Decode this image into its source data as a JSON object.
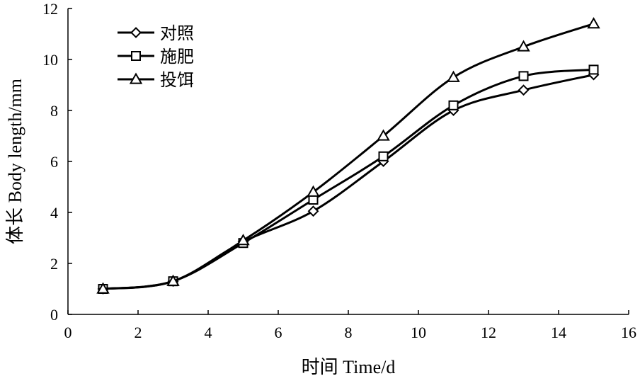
{
  "chart_data": {
    "type": "line",
    "xlabel": "时间 Time/d",
    "ylabel": "体长 Body length/mm",
    "xlim": [
      0,
      16
    ],
    "ylim": [
      0,
      12
    ],
    "xticks": [
      0,
      2,
      4,
      6,
      8,
      10,
      12,
      14,
      16
    ],
    "yticks": [
      0,
      2,
      4,
      6,
      8,
      10,
      12
    ],
    "grid": false,
    "legend_position": "top-left",
    "x": [
      1,
      3,
      5,
      7,
      9,
      11,
      13,
      15
    ],
    "series": [
      {
        "name": "对照",
        "marker": "diamond",
        "color": "#000000",
        "values": [
          1.0,
          1.3,
          2.85,
          4.05,
          6.0,
          8.0,
          8.8,
          9.4
        ]
      },
      {
        "name": "施肥",
        "marker": "square",
        "color": "#000000",
        "values": [
          1.0,
          1.3,
          2.8,
          4.5,
          6.2,
          8.2,
          9.35,
          9.6
        ]
      },
      {
        "name": "投饵",
        "marker": "triangle",
        "color": "#000000",
        "values": [
          1.0,
          1.3,
          2.9,
          4.8,
          7.0,
          9.3,
          10.5,
          11.4
        ]
      }
    ]
  }
}
